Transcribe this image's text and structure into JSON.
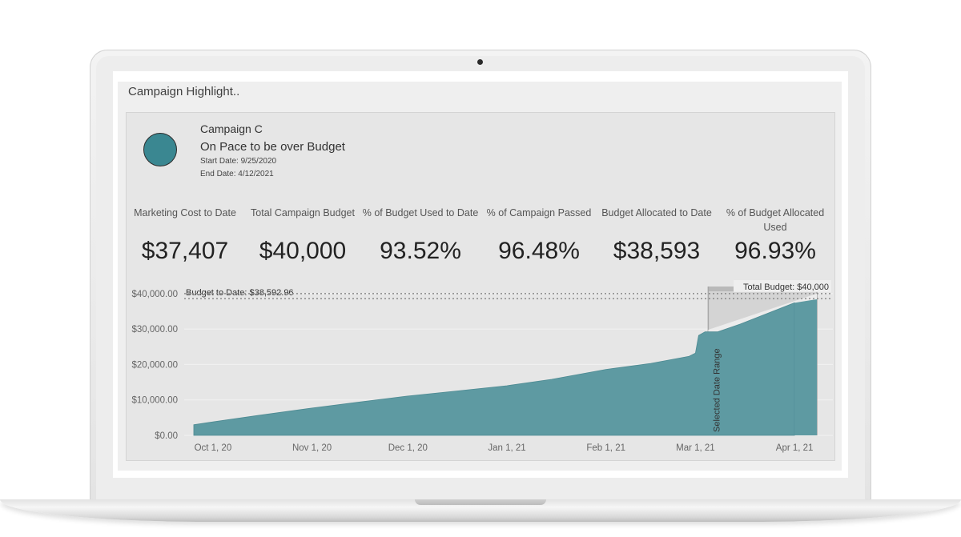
{
  "dashboard": {
    "title": "Campaign Highlight..",
    "campaign": {
      "name": "Campaign C",
      "status": "On Pace to be over Budget",
      "start_date": "Start Date: 9/25/2020",
      "end_date": "End Date: 4/12/2021",
      "status_color": "#3a8791"
    },
    "kpis": [
      {
        "label": "Marketing Cost to Date",
        "value": "$37,407"
      },
      {
        "label": "Total Campaign Budget",
        "value": "$40,000"
      },
      {
        "label": "% of Budget Used to Date",
        "value": "93.52%"
      },
      {
        "label": "% of Campaign Passed",
        "value": "96.48%"
      },
      {
        "label": "Budget Allocated to Date",
        "value": "$38,593"
      },
      {
        "label": "% of Budget Allocated Used",
        "value": "96.93%"
      }
    ]
  },
  "chart_data": {
    "type": "area",
    "x_tick_labels": [
      "Oct 1, 20",
      "Nov 1, 20",
      "Dec 1, 20",
      "Jan 1, 21",
      "Feb 1, 21",
      "Mar 1, 21",
      "Apr 1, 21"
    ],
    "y_tick_labels": [
      "$0.00",
      "$10,000.00",
      "$20,000.00",
      "$30,000.00",
      "$40,000.00"
    ],
    "ylim": [
      0,
      42000
    ],
    "xlim": [
      "2020-09-22",
      "2021-04-13"
    ],
    "series": [
      {
        "color": "#5e9aa2",
        "points": [
          [
            "2020-09-25",
            3000
          ],
          [
            "2020-10-01",
            3800
          ],
          [
            "2020-10-15",
            5600
          ],
          [
            "2020-11-01",
            7700
          ],
          [
            "2020-11-15",
            9300
          ],
          [
            "2020-12-01",
            11100
          ],
          [
            "2020-12-15",
            12400
          ],
          [
            "2021-01-01",
            14000
          ],
          [
            "2021-01-15",
            15800
          ],
          [
            "2021-02-01",
            18600
          ],
          [
            "2021-02-15",
            20300
          ],
          [
            "2021-02-27",
            22300
          ],
          [
            "2021-03-01",
            23200
          ],
          [
            "2021-03-02",
            28200
          ],
          [
            "2021-03-04",
            29200
          ],
          [
            "2021-03-08",
            29200
          ],
          [
            "2021-03-15",
            31400
          ],
          [
            "2021-04-01",
            37407
          ]
        ]
      }
    ],
    "selected_range": {
      "label": "Selected Date Range",
      "start": "2021-03-05",
      "end": "2021-04-08",
      "budget_line_start": 29800
    },
    "budget_to_date": {
      "label": "Budget to Date: $38,592.96",
      "value": 38593
    },
    "total_budget": {
      "label": "Total Budget: $40,000",
      "value": 40000
    },
    "grid": true
  }
}
